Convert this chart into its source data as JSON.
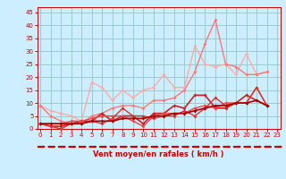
{
  "xlabel": "Vent moyen/en rafales ( km/h )",
  "bg_color": "#cceeff",
  "grid_color": "#99cccc",
  "x_ticks": [
    0,
    1,
    2,
    3,
    4,
    5,
    6,
    7,
    8,
    9,
    10,
    11,
    12,
    13,
    14,
    15,
    16,
    17,
    18,
    19,
    20,
    21,
    22,
    23
  ],
  "y_ticks": [
    0,
    5,
    10,
    15,
    20,
    25,
    30,
    35,
    40,
    45
  ],
  "ylim": [
    0,
    47
  ],
  "xlim": [
    0,
    23
  ],
  "lines": [
    {
      "color": "#ffaaaa",
      "lw": 1.0,
      "marker": "D",
      "markersize": 2.0,
      "data": [
        [
          0,
          9
        ],
        [
          1,
          7
        ],
        [
          2,
          6
        ],
        [
          3,
          5
        ],
        [
          4,
          3
        ],
        [
          5,
          18
        ],
        [
          6,
          16
        ],
        [
          7,
          11
        ],
        [
          8,
          15
        ],
        [
          9,
          12
        ],
        [
          10,
          15
        ],
        [
          11,
          16
        ],
        [
          12,
          21
        ],
        [
          13,
          16
        ],
        [
          14,
          16
        ],
        [
          15,
          32
        ],
        [
          16,
          25
        ],
        [
          17,
          24
        ],
        [
          18,
          25
        ],
        [
          19,
          21
        ],
        [
          20,
          29
        ],
        [
          21,
          21
        ],
        [
          22,
          22
        ]
      ]
    },
    {
      "color": "#ff7777",
      "lw": 1.0,
      "marker": "D",
      "markersize": 2.0,
      "data": [
        [
          0,
          9
        ],
        [
          1,
          5
        ],
        [
          2,
          3
        ],
        [
          3,
          2
        ],
        [
          4,
          2
        ],
        [
          5,
          5
        ],
        [
          6,
          6
        ],
        [
          7,
          8
        ],
        [
          8,
          9
        ],
        [
          9,
          9
        ],
        [
          10,
          8
        ],
        [
          11,
          11
        ],
        [
          12,
          11
        ],
        [
          13,
          12
        ],
        [
          14,
          15
        ],
        [
          15,
          22
        ],
        [
          16,
          33
        ],
        [
          17,
          42
        ],
        [
          18,
          25
        ],
        [
          19,
          24
        ],
        [
          20,
          21
        ],
        [
          21,
          21
        ],
        [
          22,
          22
        ]
      ]
    },
    {
      "color": "#cc2222",
      "lw": 1.2,
      "marker": "D",
      "markersize": 2.0,
      "data": [
        [
          0,
          2
        ],
        [
          1,
          1
        ],
        [
          2,
          1
        ],
        [
          3,
          2
        ],
        [
          4,
          3
        ],
        [
          5,
          3
        ],
        [
          6,
          6
        ],
        [
          7,
          3
        ],
        [
          8,
          5
        ],
        [
          9,
          5
        ],
        [
          10,
          2
        ],
        [
          11,
          6
        ],
        [
          12,
          6
        ],
        [
          13,
          9
        ],
        [
          14,
          8
        ],
        [
          15,
          13
        ],
        [
          16,
          13
        ],
        [
          17,
          8
        ],
        [
          18,
          8
        ],
        [
          19,
          10
        ],
        [
          20,
          13
        ],
        [
          21,
          11
        ],
        [
          22,
          9
        ]
      ]
    },
    {
      "color": "#ee4444",
      "lw": 1.0,
      "marker": "D",
      "markersize": 2.0,
      "data": [
        [
          0,
          2
        ],
        [
          1,
          2
        ],
        [
          2,
          2
        ],
        [
          3,
          3
        ],
        [
          4,
          3
        ],
        [
          5,
          4
        ],
        [
          6,
          5
        ],
        [
          7,
          5
        ],
        [
          8,
          5
        ],
        [
          9,
          3
        ],
        [
          10,
          1
        ],
        [
          11,
          5
        ],
        [
          12,
          6
        ],
        [
          13,
          6
        ],
        [
          14,
          6
        ],
        [
          15,
          8
        ],
        [
          16,
          9
        ],
        [
          17,
          8
        ],
        [
          18,
          10
        ],
        [
          19,
          10
        ],
        [
          20,
          10
        ],
        [
          21,
          16
        ],
        [
          22,
          9
        ]
      ]
    },
    {
      "color": "#dd3333",
      "lw": 1.0,
      "marker": "D",
      "markersize": 2.0,
      "data": [
        [
          0,
          2
        ],
        [
          1,
          1
        ],
        [
          2,
          0
        ],
        [
          3,
          2
        ],
        [
          4,
          2
        ],
        [
          5,
          3
        ],
        [
          6,
          2
        ],
        [
          7,
          4
        ],
        [
          8,
          8
        ],
        [
          9,
          5
        ],
        [
          10,
          5
        ],
        [
          11,
          4
        ],
        [
          12,
          5
        ],
        [
          13,
          5
        ],
        [
          14,
          7
        ],
        [
          15,
          5
        ],
        [
          16,
          8
        ],
        [
          17,
          12
        ],
        [
          18,
          9
        ],
        [
          19,
          10
        ],
        [
          20,
          10
        ],
        [
          21,
          16
        ],
        [
          22,
          9
        ]
      ]
    },
    {
      "color": "#aa0000",
      "lw": 1.2,
      "marker": "D",
      "markersize": 2.0,
      "data": [
        [
          0,
          2
        ],
        [
          1,
          2
        ],
        [
          2,
          2
        ],
        [
          3,
          2
        ],
        [
          4,
          2
        ],
        [
          5,
          3
        ],
        [
          6,
          3
        ],
        [
          7,
          3
        ],
        [
          8,
          4
        ],
        [
          9,
          4
        ],
        [
          10,
          4
        ],
        [
          11,
          5
        ],
        [
          12,
          5
        ],
        [
          13,
          6
        ],
        [
          14,
          6
        ],
        [
          15,
          7
        ],
        [
          16,
          8
        ],
        [
          17,
          9
        ],
        [
          18,
          9
        ],
        [
          19,
          10
        ],
        [
          20,
          10
        ],
        [
          21,
          11
        ],
        [
          22,
          9
        ]
      ]
    }
  ]
}
